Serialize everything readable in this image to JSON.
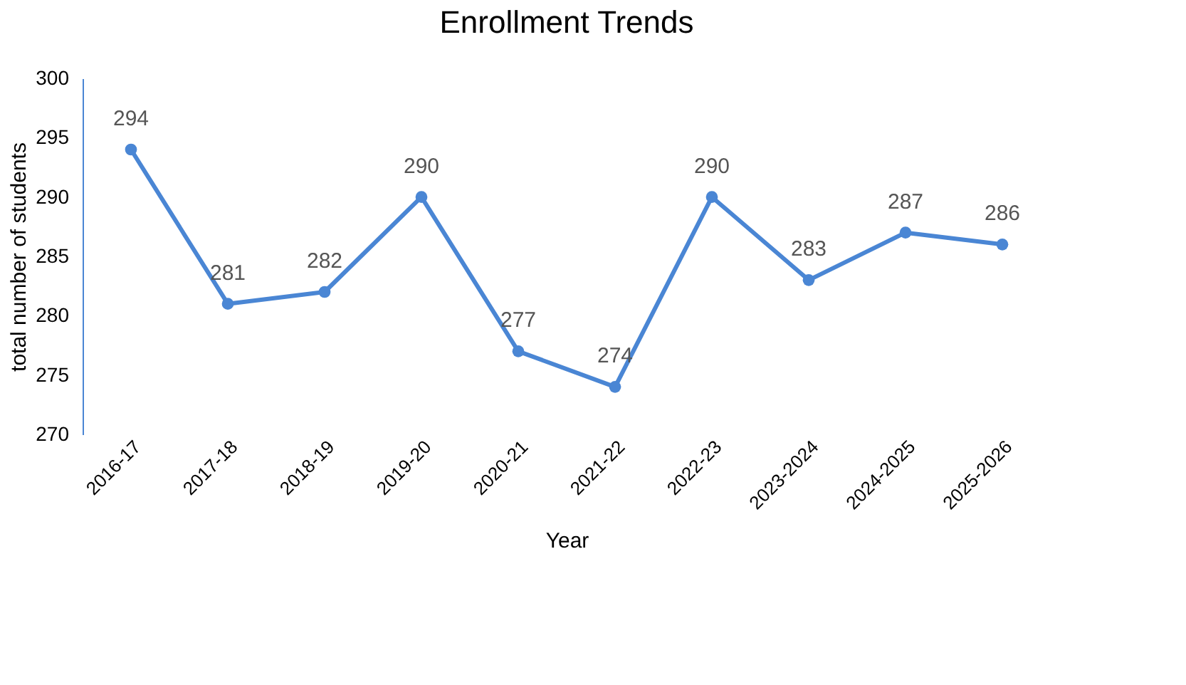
{
  "chart_data": {
    "type": "line",
    "title": "Enrollment Trends",
    "xlabel": "Year",
    "ylabel": "total number of students",
    "categories": [
      "2016-17",
      "2017-18",
      "2018-19",
      "2019-20",
      "2020-21",
      "2021-22",
      "2022-23",
      "2023-2024",
      "2024-2025",
      "2025-2026"
    ],
    "series": [
      {
        "color": "#4a86d4",
        "values": [
          294,
          281,
          282,
          290,
          277,
          274,
          290,
          283,
          287,
          286
        ]
      }
    ],
    "ylim": [
      270,
      300
    ],
    "yticks": [
      270,
      275,
      280,
      285,
      290,
      295,
      300
    ],
    "grid": false,
    "marker": "circle",
    "line_style": "solid",
    "data_labels": true
  }
}
